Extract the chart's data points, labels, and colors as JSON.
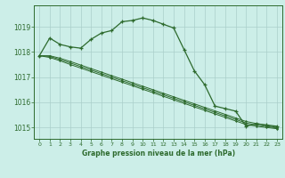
{
  "title": "Graphe pression niveau de la mer (hPa)",
  "background_color": "#cceee8",
  "grid_color": "#aacfca",
  "line_color": "#2d6a2d",
  "x_ticks": [
    0,
    1,
    2,
    3,
    4,
    5,
    6,
    7,
    8,
    9,
    10,
    11,
    12,
    13,
    14,
    15,
    16,
    17,
    18,
    19,
    20,
    21,
    22,
    23
  ],
  "y_ticks": [
    1015,
    1016,
    1017,
    1018,
    1019
  ],
  "ylim": [
    1014.55,
    1019.85
  ],
  "xlim": [
    -0.5,
    23.5
  ],
  "main_curve": [
    1017.85,
    1018.55,
    1018.3,
    1018.2,
    1018.15,
    1018.5,
    1018.75,
    1018.85,
    1019.2,
    1019.25,
    1019.35,
    1019.25,
    1019.1,
    1018.95,
    1018.1,
    1017.25,
    1016.7,
    1015.85,
    1015.75,
    1015.65,
    1015.05,
    1015.15,
    1015.1,
    1015.05
  ],
  "flat_line1": [
    1017.85,
    1017.85,
    1017.75,
    1017.62,
    1017.48,
    1017.34,
    1017.2,
    1017.06,
    1016.92,
    1016.78,
    1016.64,
    1016.5,
    1016.36,
    1016.22,
    1016.08,
    1015.94,
    1015.8,
    1015.66,
    1015.52,
    1015.38,
    1015.24,
    1015.16,
    1015.08,
    1015.0
  ],
  "flat_line2": [
    1017.85,
    1017.82,
    1017.7,
    1017.56,
    1017.42,
    1017.28,
    1017.14,
    1017.0,
    1016.86,
    1016.72,
    1016.58,
    1016.44,
    1016.3,
    1016.16,
    1016.02,
    1015.88,
    1015.74,
    1015.6,
    1015.46,
    1015.32,
    1015.18,
    1015.1,
    1015.04,
    1014.98
  ],
  "flat_line3": [
    1017.85,
    1017.78,
    1017.65,
    1017.5,
    1017.36,
    1017.22,
    1017.08,
    1016.94,
    1016.8,
    1016.66,
    1016.52,
    1016.38,
    1016.24,
    1016.1,
    1015.96,
    1015.82,
    1015.68,
    1015.54,
    1015.4,
    1015.26,
    1015.12,
    1015.05,
    1015.0,
    1014.95
  ]
}
